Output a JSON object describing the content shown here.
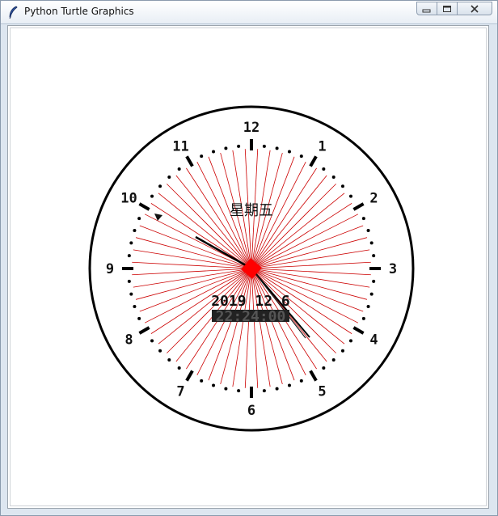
{
  "window": {
    "title": "Python Turtle Graphics",
    "app_icon": "feather-icon",
    "controls": {
      "minimize_icon": "minimize-icon",
      "maximize_icon": "restore-icon",
      "close_icon": "close-icon"
    }
  },
  "clock": {
    "hour_numbers": [
      "12",
      "1",
      "2",
      "3",
      "4",
      "5",
      "6",
      "7",
      "8",
      "9",
      "10",
      "11"
    ],
    "weekday": "星期五",
    "date": "2019 12 6",
    "time": "22:24:00",
    "hand_color": "#000000",
    "ray_color": "#cc0000",
    "center_color": "#ff0000"
  }
}
